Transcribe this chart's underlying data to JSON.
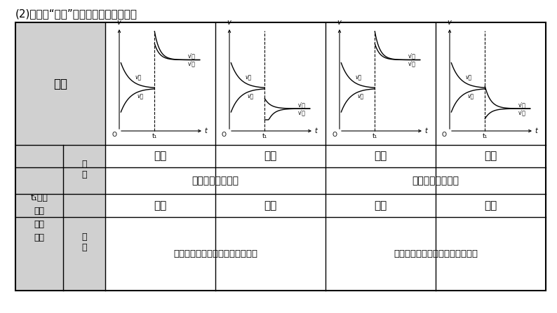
{
  "title": "(2)常见含“断点”的速率－时间图像分析",
  "bg_color": "#ffffff",
  "table_bg_header": "#d0d0d0",
  "row1_labels": [
    "升高",
    "降低",
    "升高",
    "降低"
  ],
  "row2_left": "正反应为放热反应",
  "row2_right": "正反应为吸热反应",
  "row3_labels": [
    "增大",
    "减小",
    "增大",
    "减小"
  ],
  "row4_left": "正反应为气体物质的量增大的反应",
  "row4_right": "正反应为气体物质的量减小的反应",
  "figsize": [
    7.94,
    4.47
  ],
  "dpi": 100
}
